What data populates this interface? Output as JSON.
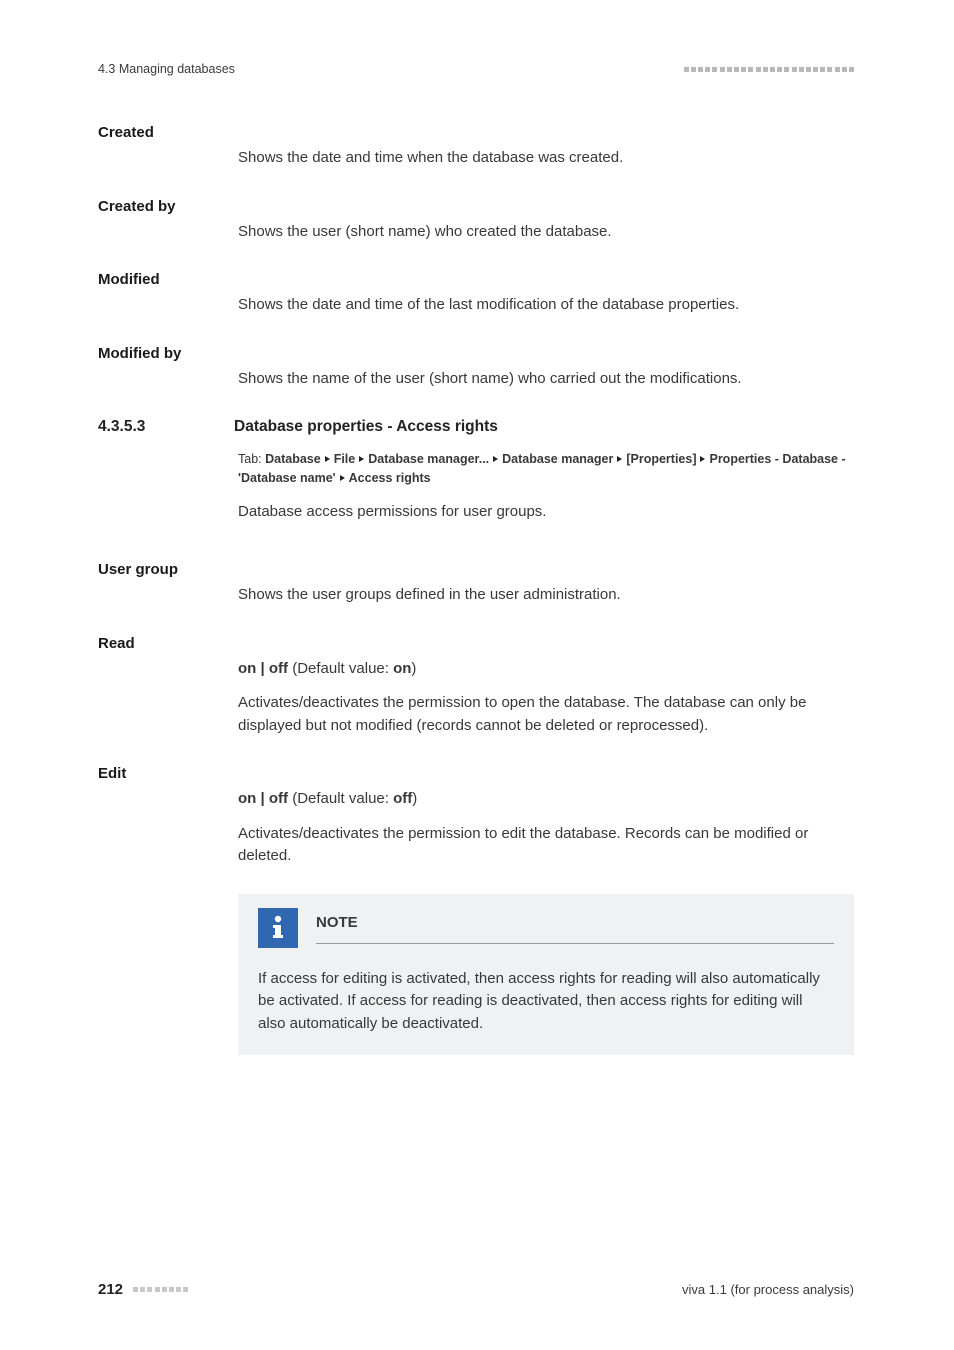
{
  "header": {
    "section_crumb": "4.3 Managing databases",
    "dot_count": 24,
    "dot_color": "#b9b9b9"
  },
  "fields": {
    "created": {
      "label": "Created",
      "desc": "Shows the date and time when the database was created."
    },
    "created_by": {
      "label": "Created by",
      "desc": "Shows the user (short name) who created the database."
    },
    "modified": {
      "label": "Modified",
      "desc": "Shows the date and time of the last modification of the database properties."
    },
    "modified_by": {
      "label": "Modified by",
      "desc": "Shows the name of the user (short name) who carried out the modifications."
    }
  },
  "section": {
    "number": "4.3.5.3",
    "title": "Database properties - Access rights",
    "tab_lead": "Tab: ",
    "breadcrumb": [
      "Database",
      "File",
      "Database manager...",
      "Database manager",
      "[Properties]",
      "Properties - Database - 'Database name'",
      "Access rights"
    ],
    "intro": "Database access permissions for user groups."
  },
  "user_group": {
    "label": "User group",
    "desc": "Shows the user groups defined in the user administration."
  },
  "read": {
    "label": "Read",
    "on": "on",
    "sep": " | ",
    "off": "off",
    "def_label": " (Default value: ",
    "def_value": "on",
    "def_close": ")",
    "desc": "Activates/deactivates the permission to open the database. The database can only be displayed but not modified (records cannot be deleted or reprocessed)."
  },
  "edit": {
    "label": "Edit",
    "on": "on",
    "sep": " | ",
    "off": "off",
    "def_label": " (Default value: ",
    "def_value": "off",
    "def_close": ")",
    "desc": "Activates/deactivates the permission to edit the database. Records can be modified or deleted."
  },
  "note": {
    "title": "NOTE",
    "body": "If access for editing is activated, then access rights for reading will also automatically be activated. If access for reading is deactivated, then access rights for editing will also automatically be deactivated.",
    "icon_bg": "#2f68b0"
  },
  "footer": {
    "page": "212",
    "dot_count": 8,
    "dot_color": "#c8c8c8",
    "right": "viva 1.1 (for process analysis)"
  }
}
